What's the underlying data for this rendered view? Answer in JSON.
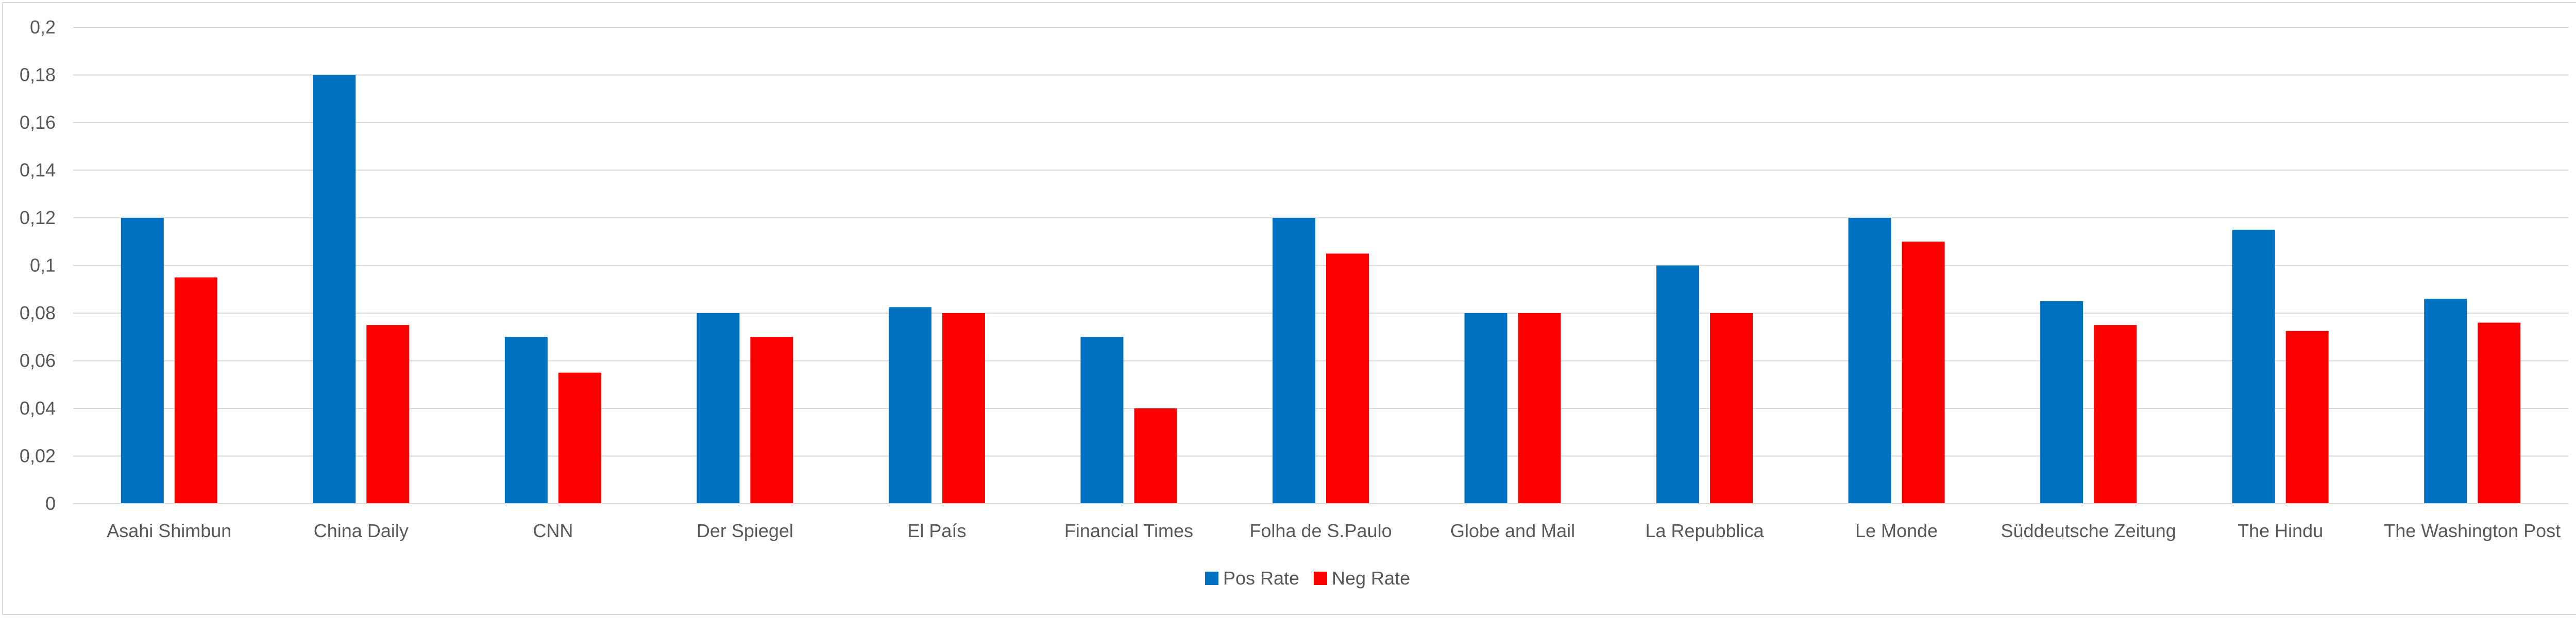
{
  "chart_data": {
    "type": "bar",
    "title": "",
    "xlabel": "",
    "ylabel": "",
    "ylim": [
      0,
      0.2
    ],
    "yticks": [
      "0",
      "0,02",
      "0,04",
      "0,06",
      "0,08",
      "0,1",
      "0,12",
      "0,14",
      "0,16",
      "0,18",
      "0,2"
    ],
    "grid": true,
    "legend_position": "bottom",
    "categories": [
      "Asahi Shimbun",
      "China Daily",
      "CNN",
      "Der Spiegel",
      "El País",
      "Financial Times",
      "Folha de S.Paulo",
      "Globe and Mail",
      "La Repubblica",
      "Le Monde",
      "Süddeutsche Zeitung",
      "The Hindu",
      "The Washington Post"
    ],
    "series": [
      {
        "name": "Pos Rate",
        "color": "#0070c0",
        "values": [
          0.12,
          0.18,
          0.07,
          0.08,
          0.0825,
          0.07,
          0.12,
          0.08,
          0.1,
          0.12,
          0.085,
          0.115,
          0.086
        ]
      },
      {
        "name": "Neg Rate",
        "color": "#ff0000",
        "values": [
          0.095,
          0.075,
          0.055,
          0.07,
          0.08,
          0.04,
          0.105,
          0.08,
          0.08,
          0.11,
          0.075,
          0.0725,
          0.076
        ]
      }
    ]
  }
}
